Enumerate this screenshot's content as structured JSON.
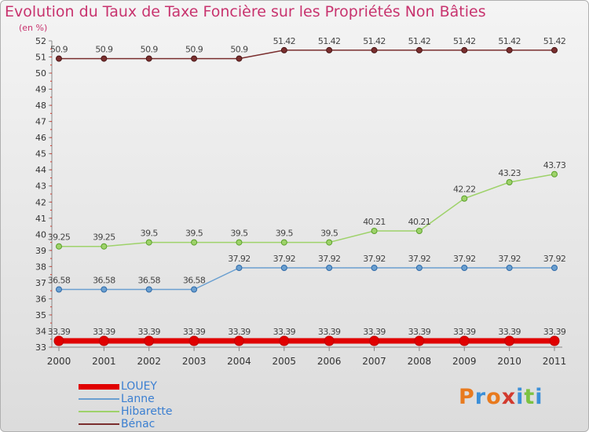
{
  "header": {
    "title": "Evolution du Taux de Taxe Foncière sur les Propriétés Non Bâties",
    "unit": "(en %)"
  },
  "logo": {
    "text": "Proxiti",
    "colors": [
      "#e87a1e",
      "#3b8fd8",
      "#e87a1e",
      "#d23a2e",
      "#3b8fd8",
      "#7cc242",
      "#3b8fd8"
    ]
  },
  "chart_data": {
    "type": "line",
    "title": "Evolution du Taux de Taxe Foncière sur les Propriétés Non Bâties",
    "ylabel": "(en %)",
    "xlabel": "",
    "x": [
      "2000",
      "2001",
      "2002",
      "2003",
      "2004",
      "2005",
      "2006",
      "2007",
      "2008",
      "2009",
      "2010",
      "2011"
    ],
    "ylim": [
      33,
      52
    ],
    "yticks": [
      33,
      34,
      35,
      36,
      37,
      38,
      39,
      40,
      41,
      42,
      43,
      44,
      45,
      46,
      47,
      48,
      49,
      50,
      51,
      52
    ],
    "grid": false,
    "legend_position": "bottom-left",
    "series": [
      {
        "name": "LOUEY",
        "color": "#e00000",
        "width": 7,
        "radius": 6,
        "values": [
          33.39,
          33.39,
          33.39,
          33.39,
          33.39,
          33.39,
          33.39,
          33.39,
          33.39,
          33.39,
          33.39,
          33.39
        ],
        "labels": [
          "33.39",
          "33.39",
          "33.39",
          "33.39",
          "33.39",
          "33.39",
          "33.39",
          "33.39",
          "33.39",
          "33.39",
          "33.39",
          "33.39"
        ]
      },
      {
        "name": "Lanne",
        "color": "#6a9fd0",
        "width": 1.5,
        "radius": 3.5,
        "values": [
          36.58,
          36.58,
          36.58,
          36.58,
          37.92,
          37.92,
          37.92,
          37.92,
          37.92,
          37.92,
          37.92,
          37.92
        ],
        "labels": [
          "36.58",
          "36.58",
          "36.58",
          "36.58",
          "37.92",
          "37.92",
          "37.92",
          "37.92",
          "37.92",
          "37.92",
          "37.92",
          "37.92"
        ]
      },
      {
        "name": "Hibarette",
        "color": "#9ed26a",
        "width": 1.5,
        "radius": 3.5,
        "values": [
          39.25,
          39.25,
          39.5,
          39.5,
          39.5,
          39.5,
          39.5,
          40.21,
          40.21,
          42.22,
          43.23,
          43.73
        ],
        "labels": [
          "39.25",
          "39.25",
          "39.5",
          "39.5",
          "39.5",
          "39.5",
          "39.5",
          "40.21",
          "40.21",
          "42.22",
          "43.23",
          "43.73"
        ]
      },
      {
        "name": "Bénac",
        "color": "#7a2e2e",
        "width": 1.5,
        "radius": 3.5,
        "values": [
          50.9,
          50.9,
          50.9,
          50.9,
          50.9,
          51.42,
          51.42,
          51.42,
          51.42,
          51.42,
          51.42,
          51.42
        ],
        "labels": [
          "50.9",
          "50.9",
          "50.9",
          "50.9",
          "50.9",
          "51.42",
          "51.42",
          "51.42",
          "51.42",
          "51.42",
          "51.42",
          "51.42"
        ]
      }
    ]
  }
}
